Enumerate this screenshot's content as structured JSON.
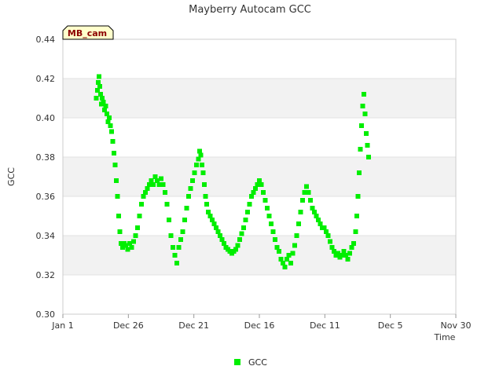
{
  "chart_data": {
    "type": "scatter",
    "title": "Mayberry Autocam GCC",
    "xlabel": "Time",
    "ylabel": "GCC",
    "site_label": "MB_cam",
    "x_ticks": [
      "Jan 1",
      "Dec 26",
      "Dec 21",
      "Dec 16",
      "Dec 11",
      "Dec 5",
      "Nov 30"
    ],
    "y_ticks": [
      "0.30",
      "0.32",
      "0.34",
      "0.36",
      "0.38",
      "0.40",
      "0.42",
      "0.44"
    ],
    "ylim": [
      0.3,
      0.44
    ],
    "grid": true,
    "legend_position": "bottom-center",
    "colors": {
      "series": "#00ee00",
      "band": "#f2f2f2",
      "label_bg": "#ffffcc"
    },
    "series": [
      {
        "name": "GCC",
        "points": [
          [
            0.085,
            0.41
          ],
          [
            0.088,
            0.414
          ],
          [
            0.09,
            0.418
          ],
          [
            0.092,
            0.421
          ],
          [
            0.094,
            0.416
          ],
          [
            0.096,
            0.412
          ],
          [
            0.098,
            0.407
          ],
          [
            0.1,
            0.41
          ],
          [
            0.103,
            0.408
          ],
          [
            0.106,
            0.404
          ],
          [
            0.109,
            0.406
          ],
          [
            0.112,
            0.402
          ],
          [
            0.115,
            0.398
          ],
          [
            0.118,
            0.4
          ],
          [
            0.121,
            0.396
          ],
          [
            0.124,
            0.393
          ],
          [
            0.127,
            0.388
          ],
          [
            0.13,
            0.382
          ],
          [
            0.133,
            0.376
          ],
          [
            0.136,
            0.368
          ],
          [
            0.139,
            0.36
          ],
          [
            0.142,
            0.35
          ],
          [
            0.145,
            0.342
          ],
          [
            0.148,
            0.336
          ],
          [
            0.152,
            0.334
          ],
          [
            0.156,
            0.336
          ],
          [
            0.16,
            0.335
          ],
          [
            0.165,
            0.333
          ],
          [
            0.17,
            0.336
          ],
          [
            0.175,
            0.334
          ],
          [
            0.18,
            0.337
          ],
          [
            0.185,
            0.34
          ],
          [
            0.19,
            0.344
          ],
          [
            0.195,
            0.35
          ],
          [
            0.2,
            0.356
          ],
          [
            0.205,
            0.36
          ],
          [
            0.21,
            0.362
          ],
          [
            0.215,
            0.364
          ],
          [
            0.22,
            0.366
          ],
          [
            0.225,
            0.368
          ],
          [
            0.23,
            0.366
          ],
          [
            0.235,
            0.37
          ],
          [
            0.24,
            0.368
          ],
          [
            0.245,
            0.366
          ],
          [
            0.25,
            0.369
          ],
          [
            0.255,
            0.366
          ],
          [
            0.26,
            0.362
          ],
          [
            0.265,
            0.356
          ],
          [
            0.27,
            0.348
          ],
          [
            0.275,
            0.34
          ],
          [
            0.28,
            0.334
          ],
          [
            0.285,
            0.33
          ],
          [
            0.29,
            0.326
          ],
          [
            0.295,
            0.334
          ],
          [
            0.3,
            0.338
          ],
          [
            0.305,
            0.342
          ],
          [
            0.31,
            0.348
          ],
          [
            0.315,
            0.354
          ],
          [
            0.32,
            0.36
          ],
          [
            0.325,
            0.364
          ],
          [
            0.33,
            0.368
          ],
          [
            0.335,
            0.372
          ],
          [
            0.34,
            0.376
          ],
          [
            0.345,
            0.379
          ],
          [
            0.348,
            0.383
          ],
          [
            0.351,
            0.381
          ],
          [
            0.354,
            0.376
          ],
          [
            0.357,
            0.372
          ],
          [
            0.36,
            0.366
          ],
          [
            0.363,
            0.36
          ],
          [
            0.366,
            0.356
          ],
          [
            0.37,
            0.352
          ],
          [
            0.375,
            0.35
          ],
          [
            0.38,
            0.348
          ],
          [
            0.385,
            0.346
          ],
          [
            0.39,
            0.344
          ],
          [
            0.395,
            0.342
          ],
          [
            0.4,
            0.34
          ],
          [
            0.405,
            0.338
          ],
          [
            0.41,
            0.336
          ],
          [
            0.415,
            0.334
          ],
          [
            0.42,
            0.333
          ],
          [
            0.425,
            0.332
          ],
          [
            0.43,
            0.331
          ],
          [
            0.435,
            0.332
          ],
          [
            0.44,
            0.333
          ],
          [
            0.445,
            0.335
          ],
          [
            0.45,
            0.338
          ],
          [
            0.455,
            0.341
          ],
          [
            0.46,
            0.344
          ],
          [
            0.465,
            0.348
          ],
          [
            0.47,
            0.352
          ],
          [
            0.475,
            0.356
          ],
          [
            0.48,
            0.36
          ],
          [
            0.485,
            0.362
          ],
          [
            0.49,
            0.364
          ],
          [
            0.495,
            0.366
          ],
          [
            0.5,
            0.368
          ],
          [
            0.505,
            0.366
          ],
          [
            0.51,
            0.362
          ],
          [
            0.515,
            0.358
          ],
          [
            0.52,
            0.354
          ],
          [
            0.525,
            0.35
          ],
          [
            0.53,
            0.346
          ],
          [
            0.535,
            0.342
          ],
          [
            0.54,
            0.338
          ],
          [
            0.545,
            0.334
          ],
          [
            0.55,
            0.332
          ],
          [
            0.555,
            0.328
          ],
          [
            0.56,
            0.326
          ],
          [
            0.565,
            0.324
          ],
          [
            0.57,
            0.328
          ],
          [
            0.575,
            0.33
          ],
          [
            0.58,
            0.326
          ],
          [
            0.585,
            0.331
          ],
          [
            0.59,
            0.335
          ],
          [
            0.595,
            0.34
          ],
          [
            0.6,
            0.346
          ],
          [
            0.605,
            0.352
          ],
          [
            0.61,
            0.358
          ],
          [
            0.615,
            0.362
          ],
          [
            0.62,
            0.365
          ],
          [
            0.625,
            0.362
          ],
          [
            0.63,
            0.358
          ],
          [
            0.635,
            0.354
          ],
          [
            0.64,
            0.352
          ],
          [
            0.645,
            0.35
          ],
          [
            0.65,
            0.348
          ],
          [
            0.655,
            0.346
          ],
          [
            0.66,
            0.344
          ],
          [
            0.665,
            0.344
          ],
          [
            0.67,
            0.342
          ],
          [
            0.675,
            0.34
          ],
          [
            0.68,
            0.337
          ],
          [
            0.685,
            0.334
          ],
          [
            0.69,
            0.332
          ],
          [
            0.695,
            0.33
          ],
          [
            0.7,
            0.331
          ],
          [
            0.705,
            0.329
          ],
          [
            0.71,
            0.33
          ],
          [
            0.715,
            0.332
          ],
          [
            0.72,
            0.33
          ],
          [
            0.725,
            0.328
          ],
          [
            0.73,
            0.331
          ],
          [
            0.735,
            0.334
          ],
          [
            0.74,
            0.336
          ],
          [
            0.745,
            0.342
          ],
          [
            0.748,
            0.35
          ],
          [
            0.751,
            0.36
          ],
          [
            0.754,
            0.372
          ],
          [
            0.757,
            0.384
          ],
          [
            0.76,
            0.396
          ],
          [
            0.763,
            0.406
          ],
          [
            0.766,
            0.412
          ],
          [
            0.769,
            0.402
          ],
          [
            0.772,
            0.392
          ],
          [
            0.775,
            0.386
          ],
          [
            0.778,
            0.38
          ]
        ]
      }
    ]
  }
}
